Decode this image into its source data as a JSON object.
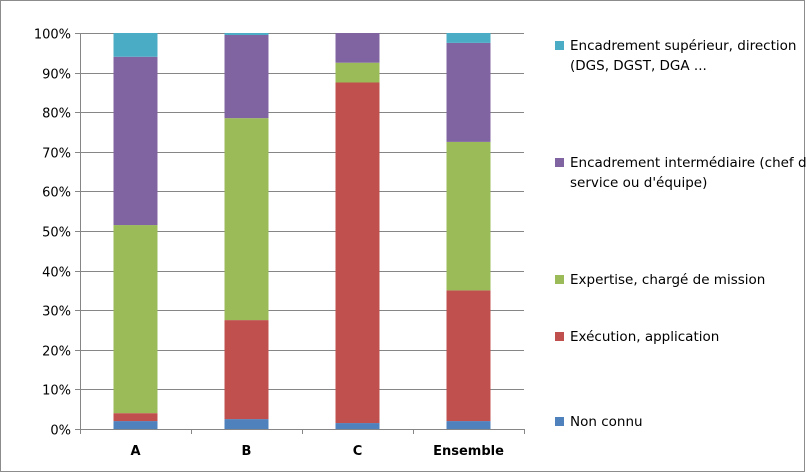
{
  "chart_data": {
    "type": "bar",
    "stacked": true,
    "percent": true,
    "categories": [
      "A",
      "B",
      "C",
      "Ensemble"
    ],
    "ylim": [
      0,
      100
    ],
    "yticks": [
      0,
      10,
      20,
      30,
      40,
      50,
      60,
      70,
      80,
      90,
      100
    ],
    "ytick_labels": [
      "0%",
      "10%",
      "20%",
      "30%",
      "40%",
      "50%",
      "60%",
      "70%",
      "80%",
      "90%",
      "100%"
    ],
    "grid": true,
    "legend_position": "right",
    "title": "",
    "xlabel": "",
    "ylabel": "",
    "series": [
      {
        "name": "Non connu",
        "color": "#4f81bd",
        "values": [
          2,
          2.5,
          1.5,
          2
        ]
      },
      {
        "name": "Exécution, application",
        "color": "#c0504d",
        "values": [
          2,
          25,
          86,
          33
        ]
      },
      {
        "name": "Expertise, chargé de mission",
        "color": "#9bbb59",
        "values": [
          47.5,
          51,
          5,
          37.5
        ]
      },
      {
        "name": "Encadrement intermédiaire (chef de service ou d'équipe)",
        "color": "#8064a2",
        "values": [
          42.5,
          21,
          7.5,
          25
        ]
      },
      {
        "name": "Encadrement supérieur, direction (DGS, DGST, DGA ...",
        "color": "#4bacc6",
        "values": [
          6,
          0.5,
          0,
          2.5
        ]
      }
    ]
  },
  "legend": {
    "items": [
      {
        "label": "Encadrement supérieur, direction (DGS, DGST, DGA ...",
        "color": "#4bacc6"
      },
      {
        "label": "Encadrement intermédiaire (chef de service ou d'équipe)",
        "color": "#8064a2"
      },
      {
        "label": "Expertise, chargé de mission",
        "color": "#9bbb59"
      },
      {
        "label": "Exécution, application",
        "color": "#c0504d"
      },
      {
        "label": "Non connu",
        "color": "#4f81bd"
      }
    ]
  }
}
